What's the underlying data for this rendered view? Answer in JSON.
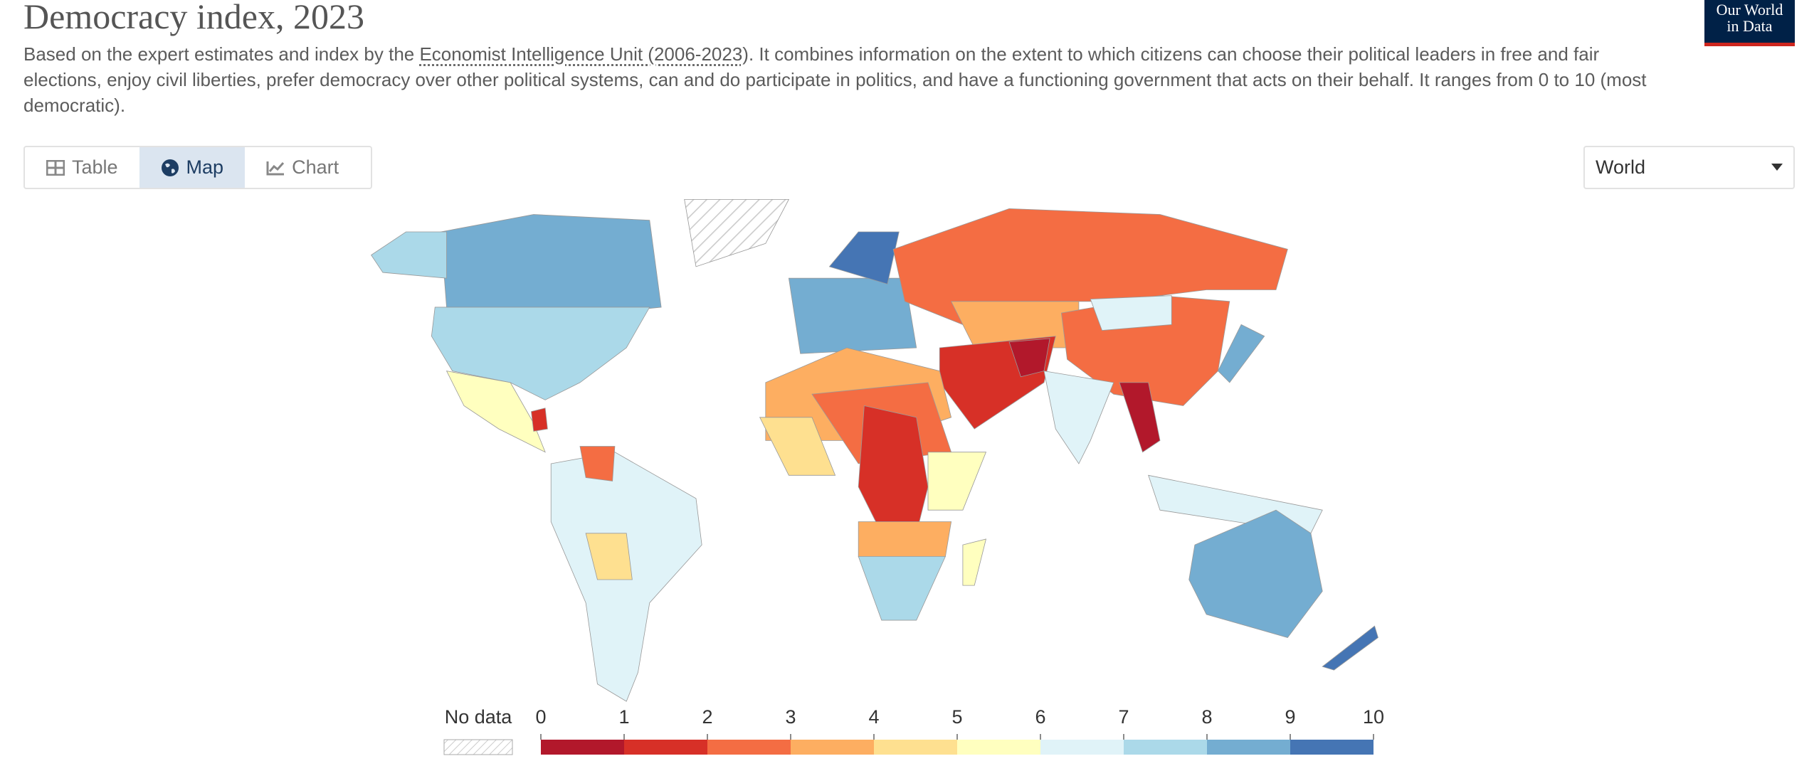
{
  "header": {
    "title": "Democracy index, 2023",
    "subtitle_before": "Based on the expert estimates and index by the ",
    "subtitle_link": "Economist Intelligence Unit (2006-2023)",
    "subtitle_after": ". It combines information on the extent to which citizens can choose their political leaders in free and fair elections, enjoy civil liberties, prefer democracy over other political systems, can and do participate in politics, and have a functioning government that acts on their behalf. It ranges from 0 to 10 (most democratic).",
    "logo": [
      "Our World",
      "in Data"
    ]
  },
  "tabs": [
    "Table",
    "Map",
    "Chart"
  ],
  "active_tab": 1,
  "region_select": "World",
  "legend": {
    "no_data": "No data",
    "ticks": [
      0,
      1,
      2,
      3,
      4,
      5,
      6,
      7,
      8,
      9,
      10
    ],
    "colors": [
      "#b2182b",
      "#d73027",
      "#f46d43",
      "#fdae61",
      "#fee090",
      "#ffffbf",
      "#e0f3f8",
      "#abd9e9",
      "#74add1",
      "#4575b4"
    ]
  }
}
